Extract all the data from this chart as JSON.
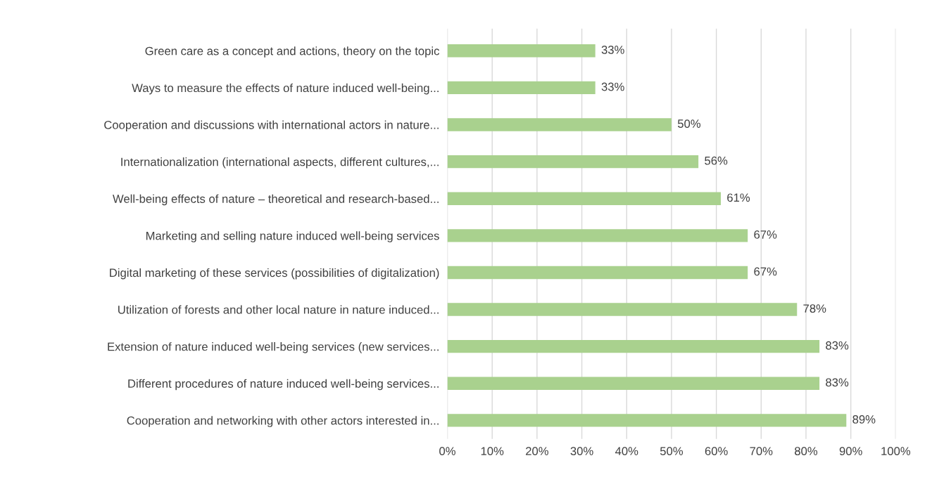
{
  "chart_data": {
    "type": "bar",
    "orientation": "horizontal",
    "categories": [
      "Green care as a concept and actions, theory on the topic",
      "Ways to measure the effects of nature induced well-being...",
      "Cooperation and discussions with international actors in nature...",
      "Internationalization (international aspects, different cultures,...",
      "Well-being effects of nature – theoretical and research-based...",
      "Marketing and selling nature induced well-being services",
      "Digital marketing of these services (possibilities of digitalization)",
      "Utilization of forests and other local nature in nature induced...",
      "Extension of nature induced well-being services (new services...",
      "Different procedures of nature induced well-being services...",
      "Cooperation and networking with other actors interested in..."
    ],
    "values": [
      33,
      33,
      50,
      56,
      61,
      67,
      67,
      78,
      83,
      83,
      89
    ],
    "value_labels": [
      "33%",
      "33%",
      "50%",
      "56%",
      "61%",
      "67%",
      "67%",
      "78%",
      "83%",
      "83%",
      "89%"
    ],
    "color": "#a9d18e",
    "xlim": [
      0,
      100
    ],
    "xticks": [
      {
        "value": 0,
        "label": "0%"
      },
      {
        "value": 10,
        "label": "10%"
      },
      {
        "value": 20,
        "label": "20%"
      },
      {
        "value": 30,
        "label": "30%"
      },
      {
        "value": 40,
        "label": "40%"
      },
      {
        "value": 50,
        "label": "50%"
      },
      {
        "value": 60,
        "label": "60%"
      },
      {
        "value": 70,
        "label": "70%"
      },
      {
        "value": 80,
        "label": "80%"
      },
      {
        "value": 90,
        "label": "90%"
      },
      {
        "value": 100,
        "label": "100%"
      }
    ],
    "grid": "x"
  }
}
